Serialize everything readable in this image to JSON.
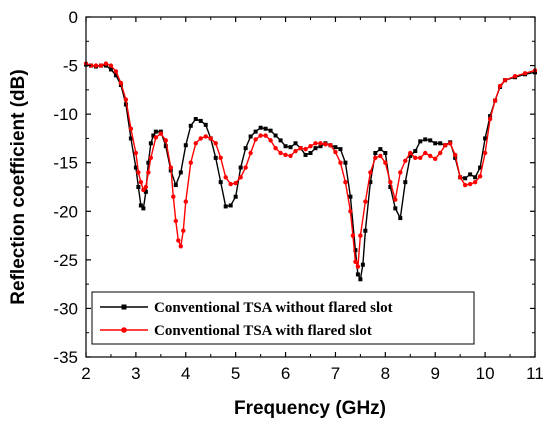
{
  "chart_data": {
    "type": "line",
    "title": "",
    "xlabel": "Frequency (GHz)",
    "ylabel": "Reflection coefficient (dB)",
    "xlim": [
      2,
      11
    ],
    "ylim": [
      -35,
      0
    ],
    "xticks": [
      2,
      3,
      4,
      5,
      6,
      7,
      8,
      9,
      10,
      11
    ],
    "yticks": [
      0,
      -5,
      -10,
      -15,
      -20,
      -25,
      -30,
      -35
    ],
    "grid": false,
    "legend_position": "bottom-left",
    "series": [
      {
        "name": "Conventional TSA without flared slot",
        "color": "#000000",
        "marker": "square",
        "x": [
          2.0,
          2.1,
          2.2,
          2.3,
          2.4,
          2.5,
          2.6,
          2.7,
          2.8,
          2.9,
          3.0,
          3.05,
          3.1,
          3.15,
          3.2,
          3.25,
          3.3,
          3.35,
          3.4,
          3.5,
          3.6,
          3.7,
          3.8,
          3.9,
          4.0,
          4.1,
          4.2,
          4.3,
          4.4,
          4.5,
          4.6,
          4.7,
          4.8,
          4.9,
          5.0,
          5.1,
          5.2,
          5.3,
          5.4,
          5.5,
          5.6,
          5.7,
          5.8,
          5.9,
          6.0,
          6.1,
          6.2,
          6.3,
          6.4,
          6.5,
          6.6,
          6.7,
          6.8,
          6.9,
          7.0,
          7.1,
          7.2,
          7.3,
          7.4,
          7.45,
          7.5,
          7.55,
          7.6,
          7.7,
          7.8,
          7.9,
          8.0,
          8.1,
          8.2,
          8.3,
          8.4,
          8.5,
          8.6,
          8.7,
          8.8,
          8.9,
          9.0,
          9.1,
          9.2,
          9.3,
          9.4,
          9.5,
          9.6,
          9.7,
          9.8,
          9.9,
          10.0,
          10.1,
          10.2,
          10.3,
          10.4,
          10.6,
          10.8,
          11.0
        ],
        "values": [
          -4.9,
          -5.0,
          -5.1,
          -5.0,
          -5.0,
          -5.4,
          -6.0,
          -7.0,
          -9.0,
          -12.5,
          -15.5,
          -17.5,
          -19.4,
          -19.7,
          -18.0,
          -15.0,
          -13.0,
          -12.2,
          -11.8,
          -11.8,
          -13.3,
          -15.8,
          -17.3,
          -16.0,
          -13.2,
          -11.2,
          -10.5,
          -10.7,
          -11.1,
          -12.5,
          -14.5,
          -17.0,
          -19.5,
          -19.4,
          -18.5,
          -15.5,
          -13.5,
          -12.3,
          -11.8,
          -11.4,
          -11.5,
          -11.7,
          -12.2,
          -12.7,
          -13.3,
          -13.4,
          -13.0,
          -13.5,
          -14.2,
          -14.0,
          -13.5,
          -13.3,
          -13.0,
          -13.2,
          -13.4,
          -13.6,
          -15.0,
          -18.5,
          -24.0,
          -26.5,
          -27.0,
          -25.5,
          -22.0,
          -17.0,
          -14.0,
          -13.6,
          -14.0,
          -17.5,
          -19.7,
          -20.7,
          -17.0,
          -14.3,
          -13.8,
          -12.8,
          -12.6,
          -12.7,
          -13.0,
          -13.0,
          -13.2,
          -12.9,
          -14.5,
          -16.5,
          -16.6,
          -16.2,
          -16.5,
          -15.5,
          -12.5,
          -10.2,
          -8.6,
          -7.2,
          -6.5,
          -6.2,
          -5.9,
          -5.7
        ]
      },
      {
        "name": "Conventional TSA with flared slot",
        "color": "#ff0000",
        "marker": "circle",
        "x": [
          2.0,
          2.1,
          2.2,
          2.3,
          2.4,
          2.5,
          2.6,
          2.7,
          2.8,
          2.9,
          3.0,
          3.05,
          3.1,
          3.15,
          3.2,
          3.25,
          3.3,
          3.4,
          3.5,
          3.6,
          3.7,
          3.75,
          3.8,
          3.85,
          3.9,
          3.95,
          4.0,
          4.1,
          4.2,
          4.3,
          4.4,
          4.5,
          4.6,
          4.7,
          4.8,
          4.9,
          5.0,
          5.1,
          5.2,
          5.3,
          5.4,
          5.5,
          5.6,
          5.7,
          5.8,
          5.9,
          6.0,
          6.1,
          6.2,
          6.3,
          6.4,
          6.5,
          6.6,
          6.7,
          6.8,
          6.9,
          7.0,
          7.1,
          7.2,
          7.3,
          7.35,
          7.4,
          7.45,
          7.5,
          7.6,
          7.7,
          7.8,
          7.9,
          8.0,
          8.1,
          8.2,
          8.3,
          8.4,
          8.5,
          8.6,
          8.7,
          8.8,
          8.9,
          9.0,
          9.1,
          9.2,
          9.3,
          9.4,
          9.5,
          9.6,
          9.7,
          9.8,
          9.9,
          10.0,
          10.1,
          10.2,
          10.3,
          10.4,
          10.6,
          10.8,
          11.0
        ],
        "values": [
          -4.8,
          -5.0,
          -5.0,
          -5.0,
          -4.8,
          -5.0,
          -5.6,
          -6.8,
          -8.5,
          -11.5,
          -14.0,
          -16.0,
          -17.0,
          -17.8,
          -17.5,
          -16.0,
          -14.5,
          -12.4,
          -12.0,
          -12.7,
          -15.5,
          -18.5,
          -21.0,
          -23.0,
          -23.6,
          -22.0,
          -19.0,
          -15.0,
          -13.0,
          -12.5,
          -12.3,
          -12.5,
          -13.0,
          -14.5,
          -16.5,
          -17.2,
          -17.1,
          -16.5,
          -15.5,
          -14.0,
          -12.6,
          -12.2,
          -12.2,
          -12.7,
          -13.5,
          -14.0,
          -14.2,
          -14.3,
          -13.8,
          -13.5,
          -13.6,
          -13.3,
          -13.0,
          -13.0,
          -13.1,
          -13.2,
          -13.9,
          -15.0,
          -17.0,
          -20.0,
          -22.5,
          -25.2,
          -25.7,
          -22.5,
          -19.0,
          -16.0,
          -14.5,
          -14.3,
          -15.0,
          -17.0,
          -18.8,
          -16.0,
          -14.8,
          -14.0,
          -14.5,
          -14.5,
          -14.0,
          -14.3,
          -14.6,
          -14.0,
          -13.2,
          -13.0,
          -14.2,
          -16.5,
          -17.3,
          -17.2,
          -17.0,
          -16.4,
          -14.0,
          -10.5,
          -8.6,
          -7.1,
          -6.5,
          -6.1,
          -5.8,
          -5.5
        ]
      }
    ]
  }
}
